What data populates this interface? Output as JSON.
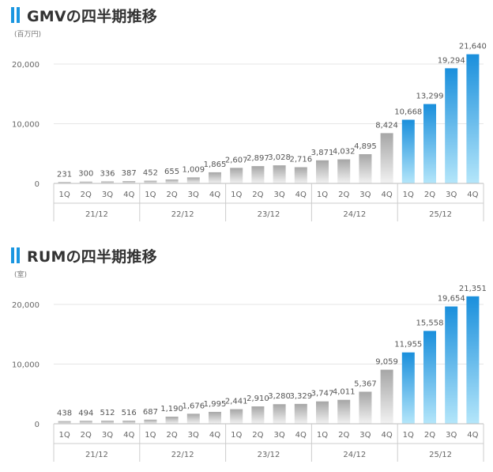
{
  "chart_data": [
    {
      "type": "bar",
      "title": "GMVの四半期推移",
      "unit": "(百万円)",
      "yticks": [
        "0",
        "10,000",
        "20,000"
      ],
      "ylim": [
        0,
        23000
      ],
      "groups": [
        {
          "label": "21/12",
          "quarters": [
            "1Q",
            "2Q",
            "3Q",
            "4Q"
          ]
        },
        {
          "label": "22/12",
          "quarters": [
            "1Q",
            "2Q",
            "3Q",
            "4Q"
          ]
        },
        {
          "label": "23/12",
          "quarters": [
            "1Q",
            "2Q",
            "3Q",
            "4Q"
          ]
        },
        {
          "label": "24/12",
          "quarters": [
            "1Q",
            "2Q",
            "3Q",
            "4Q"
          ]
        },
        {
          "label": "25/12",
          "quarters": [
            "1Q",
            "2Q",
            "3Q",
            "4Q"
          ]
        }
      ],
      "values": [
        231,
        300,
        336,
        387,
        452,
        655,
        1009,
        1865,
        2607,
        2897,
        3028,
        2716,
        3871,
        4032,
        4895,
        8424,
        10668,
        13299,
        19294,
        21640
      ],
      "value_labels": [
        "231",
        "300",
        "336",
        "387",
        "452",
        "655",
        "1,009",
        "1,865",
        "2,607",
        "2,897",
        "3,028",
        "2,716",
        "3,871",
        "4,032",
        "4,895",
        "8,424",
        "10,668",
        "13,299",
        "19,294",
        "21,640"
      ],
      "highlight_group": 4,
      "colors": {
        "highlight_top": "#1a8fdc",
        "highlight_bottom": "#b4e6fa",
        "normal_top": "#a6a6a6",
        "normal_bottom": "#f2f2f2"
      }
    },
    {
      "type": "bar",
      "title": "RUMの四半期推移",
      "unit": "(室)",
      "yticks": [
        "0",
        "10,000",
        "20,000"
      ],
      "ylim": [
        0,
        23000
      ],
      "groups": [
        {
          "label": "21/12",
          "quarters": [
            "1Q",
            "2Q",
            "3Q",
            "4Q"
          ]
        },
        {
          "label": "22/12",
          "quarters": [
            "1Q",
            "2Q",
            "3Q",
            "4Q"
          ]
        },
        {
          "label": "23/12",
          "quarters": [
            "1Q",
            "2Q",
            "3Q",
            "4Q"
          ]
        },
        {
          "label": "24/12",
          "quarters": [
            "1Q",
            "2Q",
            "3Q",
            "4Q"
          ]
        },
        {
          "label": "25/12",
          "quarters": [
            "1Q",
            "2Q",
            "3Q",
            "4Q"
          ]
        }
      ],
      "values": [
        438,
        494,
        512,
        516,
        687,
        1190,
        1676,
        1995,
        2441,
        2910,
        3280,
        3329,
        3747,
        4011,
        5367,
        9059,
        11955,
        15558,
        19654,
        21351
      ],
      "value_labels": [
        "438",
        "494",
        "512",
        "516",
        "687",
        "1,190",
        "1,676",
        "1,995",
        "2,441",
        "2,910",
        "3,280",
        "3,329",
        "3,747",
        "4,011",
        "5,367",
        "9,059",
        "11,955",
        "15,558",
        "19,654",
        "21,351"
      ],
      "highlight_group": 4,
      "colors": {
        "highlight_top": "#1a8fdc",
        "highlight_bottom": "#b4e6fa",
        "normal_top": "#a6a6a6",
        "normal_bottom": "#f2f2f2"
      }
    }
  ]
}
